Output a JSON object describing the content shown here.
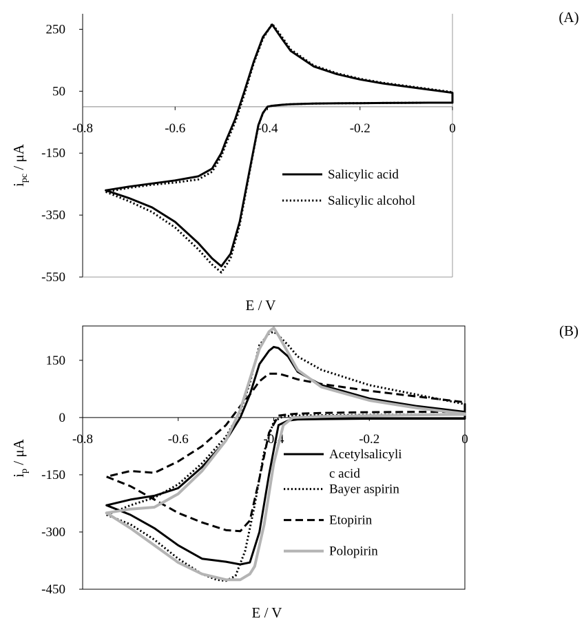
{
  "chart_data": [
    {
      "panel_label": "(A)",
      "type": "line",
      "xlabel": "E / V",
      "ylabel_main": "i",
      "ylabel_sub": "pc",
      "ylabel_unit": " / μA",
      "xlim": [
        -0.8,
        0
      ],
      "ylim": [
        -550,
        300
      ],
      "x_ticks": [
        -0.8,
        -0.6,
        -0.4,
        -0.2,
        0
      ],
      "x_tick_labels": [
        "-0.8",
        "-0.6",
        "-0.4",
        "-0.2",
        "0"
      ],
      "y_ticks": [
        250,
        50,
        -150,
        -350,
        -550
      ],
      "y_tick_labels": [
        "250",
        "50",
        "-150",
        "-350",
        "-550"
      ],
      "grid": false,
      "legend_position": "right",
      "series": [
        {
          "name": "Salicylic acid",
          "style": "solid",
          "color": "#000000",
          "x": [
            -0.75,
            -0.7,
            -0.65,
            -0.6,
            -0.55,
            -0.52,
            -0.5,
            -0.48,
            -0.46,
            -0.44,
            -0.42,
            -0.41,
            -0.4,
            -0.39,
            -0.37,
            -0.35,
            -0.3,
            -0.25,
            -0.2,
            -0.15,
            -0.1,
            -0.05,
            0,
            0,
            -0.05,
            -0.1,
            -0.15,
            -0.2,
            -0.25,
            -0.3,
            -0.35,
            -0.37,
            -0.39,
            -0.41,
            -0.43,
            -0.45,
            -0.47,
            -0.49,
            -0.5,
            -0.52,
            -0.55,
            -0.6,
            -0.65,
            -0.7,
            -0.75
          ],
          "y": [
            -270,
            -295,
            -325,
            -372,
            -440,
            -490,
            -515,
            -475,
            -370,
            -215,
            -60,
            -20,
            0,
            3,
            6,
            8,
            10,
            11,
            11.5,
            12,
            12.5,
            13,
            13,
            45,
            55,
            65,
            75,
            88,
            105,
            130,
            180,
            222,
            265,
            225,
            145,
            50,
            -40,
            -110,
            -150,
            -200,
            -225,
            -238,
            -248,
            -258,
            -270
          ]
        },
        {
          "name": "Salicylic alcohol",
          "style": "dotted",
          "color": "#000000",
          "x": [
            -0.75,
            -0.7,
            -0.65,
            -0.6,
            -0.55,
            -0.52,
            -0.5,
            -0.48,
            -0.46,
            -0.44,
            -0.42,
            -0.41,
            -0.4,
            -0.39,
            -0.37,
            -0.35,
            -0.3,
            -0.25,
            -0.2,
            -0.15,
            -0.1,
            -0.05,
            0,
            0,
            -0.05,
            -0.1,
            -0.15,
            -0.2,
            -0.25,
            -0.3,
            -0.35,
            -0.37,
            -0.39,
            -0.41,
            -0.43,
            -0.45,
            -0.47,
            -0.49,
            -0.5,
            -0.52,
            -0.55,
            -0.6,
            -0.65,
            -0.7,
            -0.75
          ],
          "y": [
            -275,
            -305,
            -340,
            -390,
            -460,
            -510,
            -535,
            -490,
            -380,
            -220,
            -62,
            -21,
            0,
            3,
            6,
            8,
            10,
            11,
            11.5,
            12,
            12.5,
            13,
            13,
            47,
            57,
            67,
            77,
            90,
            108,
            133,
            185,
            228,
            268,
            220,
            140,
            40,
            -50,
            -120,
            -160,
            -210,
            -235,
            -245,
            -252,
            -262,
            -275
          ]
        }
      ]
    },
    {
      "panel_label": "(B)",
      "type": "line",
      "xlabel": "E / V",
      "ylabel_main": "i",
      "ylabel_sub": "p",
      "ylabel_unit": " / μA",
      "xlim": [
        -0.8,
        0
      ],
      "ylim": [
        -450,
        240
      ],
      "x_ticks": [
        -0.8,
        -0.6,
        -0.4,
        -0.2,
        0
      ],
      "x_tick_labels": [
        "-0.8",
        "-0.6",
        "-0.4",
        "-0.2",
        "0"
      ],
      "y_ticks": [
        150,
        0,
        -150,
        -300,
        -450
      ],
      "y_tick_labels": [
        "150",
        "0",
        "-150",
        "-300",
        "-450"
      ],
      "grid": false,
      "legend_position": "right",
      "series": [
        {
          "name_lines": [
            "Acetylsalicyli",
            "c acid"
          ],
          "style": "solid",
          "color": "#000000",
          "x": [
            -0.75,
            -0.7,
            -0.65,
            -0.6,
            -0.55,
            -0.5,
            -0.47,
            -0.45,
            -0.43,
            -0.41,
            -0.39,
            -0.37,
            -0.35,
            -0.3,
            -0.2,
            -0.1,
            0,
            0,
            -0.1,
            -0.2,
            -0.3,
            -0.35,
            -0.37,
            -0.39,
            -0.4,
            -0.41,
            -0.43,
            -0.45,
            -0.47,
            -0.5,
            -0.55,
            -0.6,
            -0.65,
            -0.7,
            -0.75
          ],
          "y": [
            -230,
            -255,
            -290,
            -335,
            -370,
            -378,
            -385,
            -380,
            -300,
            -150,
            -20,
            -8,
            -5,
            -4,
            -3,
            -3,
            -3,
            15,
            30,
            50,
            85,
            120,
            160,
            182,
            185,
            175,
            140,
            60,
            0,
            -60,
            -130,
            -185,
            -205,
            -215,
            -230
          ]
        },
        {
          "name_lines": [
            "Bayer aspirin"
          ],
          "style": "dotted",
          "color": "#000000",
          "x": [
            -0.75,
            -0.7,
            -0.65,
            -0.6,
            -0.55,
            -0.52,
            -0.5,
            -0.48,
            -0.46,
            -0.44,
            -0.42,
            -0.4,
            -0.38,
            -0.36,
            -0.3,
            -0.2,
            -0.1,
            0,
            0,
            -0.1,
            -0.2,
            -0.3,
            -0.35,
            -0.37,
            -0.39,
            -0.4,
            -0.41,
            -0.43,
            -0.45,
            -0.47,
            -0.5,
            -0.55,
            -0.6,
            -0.65,
            -0.7,
            -0.75
          ],
          "y": [
            -255,
            -280,
            -320,
            -370,
            -410,
            -425,
            -428,
            -415,
            -350,
            -230,
            -90,
            -10,
            3,
            5,
            6,
            7,
            8,
            8,
            35,
            60,
            85,
            125,
            160,
            190,
            215,
            225,
            220,
            190,
            90,
            15,
            -50,
            -120,
            -175,
            -210,
            -230,
            -255
          ]
        },
        {
          "name_lines": [
            "Etopirin"
          ],
          "style": "dashed",
          "color": "#000000",
          "x": [
            -0.75,
            -0.7,
            -0.65,
            -0.6,
            -0.55,
            -0.5,
            -0.47,
            -0.45,
            -0.43,
            -0.41,
            -0.39,
            -0.37,
            -0.35,
            -0.3,
            -0.2,
            -0.1,
            0,
            0,
            -0.1,
            -0.2,
            -0.3,
            -0.35,
            -0.37,
            -0.39,
            -0.41,
            -0.43,
            -0.45,
            -0.47,
            -0.5,
            -0.55,
            -0.6,
            -0.65,
            -0.7,
            -0.75
          ],
          "y": [
            -155,
            -180,
            -215,
            -250,
            -275,
            -295,
            -298,
            -270,
            -160,
            -40,
            5,
            8,
            10,
            12,
            14,
            15,
            15,
            40,
            55,
            70,
            88,
            100,
            108,
            115,
            115,
            95,
            60,
            30,
            -20,
            -75,
            -115,
            -145,
            -140,
            -155
          ]
        },
        {
          "name_lines": [
            "Polopirin"
          ],
          "style": "solid",
          "color": "#b4b4b4",
          "x": [
            -0.75,
            -0.7,
            -0.65,
            -0.6,
            -0.55,
            -0.5,
            -0.47,
            -0.45,
            -0.44,
            -0.42,
            -0.4,
            -0.38,
            -0.36,
            -0.3,
            -0.2,
            -0.1,
            0,
            0,
            -0.1,
            -0.2,
            -0.3,
            -0.35,
            -0.37,
            -0.39,
            -0.4,
            -0.41,
            -0.43,
            -0.45,
            -0.47,
            -0.5,
            -0.55,
            -0.6,
            -0.65,
            -0.7,
            -0.75
          ],
          "y": [
            -250,
            -290,
            -335,
            -380,
            -410,
            -425,
            -425,
            -410,
            -390,
            -280,
            -120,
            -20,
            0,
            3,
            5,
            7,
            8,
            10,
            25,
            45,
            80,
            125,
            170,
            215,
            235,
            225,
            180,
            100,
            20,
            -60,
            -140,
            -200,
            -235,
            -240,
            -250
          ]
        }
      ]
    }
  ]
}
